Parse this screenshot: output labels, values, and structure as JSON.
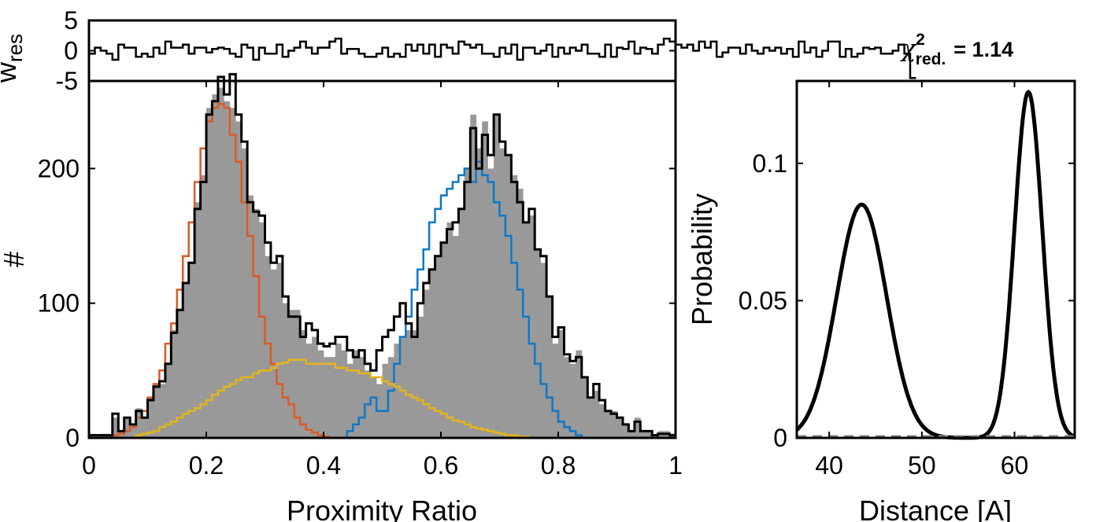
{
  "chart_data": [
    {
      "id": "residuals",
      "type": "line",
      "ylabel": "w",
      "ylabel_sub": "res",
      "xlim": [
        0,
        1
      ],
      "ylim": [
        -5,
        5
      ],
      "yticks": [
        -5,
        0,
        5
      ],
      "yticklabels": [
        "-5",
        "0",
        "5"
      ],
      "step": true,
      "grid": false,
      "x_start": 0,
      "bin_width": 0.01,
      "series": [
        {
          "color": "#000000",
          "values": [
            -0.5,
            0.5,
            0,
            -0.5,
            -1.5,
            1,
            0.5,
            0.5,
            -1,
            -0.5,
            -1,
            0.5,
            -0.5,
            1.5,
            0.5,
            0.5,
            1,
            -0.5,
            0.5,
            0.5,
            -0.3,
            0.3,
            0.5,
            0.3,
            -0.5,
            -1,
            1,
            0.5,
            -1.5,
            0.5,
            -0.5,
            -0.5,
            1,
            -1,
            0,
            0.5,
            1.5,
            0.5,
            -0.5,
            0.5,
            0.5,
            1.5,
            2,
            -0.5,
            0.3,
            0.3,
            -0.5,
            -1,
            -1,
            -0.5,
            0.5,
            -1,
            -0.5,
            -1,
            1,
            0,
            1,
            -0.5,
            1,
            -1,
            1,
            0.5,
            -0.5,
            1.5,
            1,
            0.5,
            1,
            -0.5,
            -0.5,
            -1,
            0.5,
            -0.5,
            1,
            -1.5,
            0.5,
            0.5,
            -0.5,
            0,
            1,
            -1,
            0.5,
            -0.5,
            0.5,
            0,
            1,
            -0.5,
            -0.5,
            -1,
            1,
            -1,
            0.5,
            0.3,
            1.5,
            -0.5,
            0.5,
            0.3,
            -0.5,
            1,
            2,
            1.5,
            1,
            0.5,
            1,
            0,
            1.5,
            0.5,
            1.5,
            -1,
            -0.3,
            0.5,
            0.5,
            -0.5,
            1,
            0,
            -0.5,
            0.5,
            0,
            0.5,
            -0.5,
            0.3,
            -1,
            1.5,
            -0.3,
            0.5,
            -1,
            0,
            1.5,
            1.5,
            -1,
            0.3,
            -1,
            -0.5,
            0.5,
            0.3,
            0.5,
            -0.5,
            -0.5,
            0,
            1,
            -0.5,
            -4.5
          ]
        }
      ]
    },
    {
      "id": "histogram",
      "type": "bar",
      "xlabel": "Proximity Ratio",
      "ylabel": "#",
      "xlim": [
        0,
        1
      ],
      "ylim": [
        0,
        265
      ],
      "xticks": [
        0,
        0.2,
        0.4,
        0.6,
        0.8,
        1
      ],
      "xticklabels": [
        "0",
        "0.2",
        "0.4",
        "0.6",
        "0.8",
        "1"
      ],
      "yticks": [
        0,
        100,
        200
      ],
      "yticklabels": [
        "0",
        "100",
        "200"
      ],
      "grid": false,
      "x_start": 0,
      "bin_width": 0.01,
      "data_color": "#999999",
      "data_values": [
        3,
        2,
        3,
        2,
        15,
        5,
        15,
        10,
        22,
        15,
        30,
        40,
        40,
        55,
        80,
        95,
        115,
        130,
        175,
        195,
        245,
        255,
        260,
        250,
        245,
        235,
        215,
        180,
        170,
        160,
        135,
        125,
        130,
        100,
        95,
        95,
        80,
        70,
        75,
        65,
        60,
        60,
        70,
        65,
        55,
        65,
        60,
        50,
        45,
        40,
        55,
        60,
        70,
        75,
        80,
        80,
        90,
        110,
        125,
        135,
        145,
        160,
        150,
        170,
        200,
        240,
        215,
        235,
        200,
        240,
        215,
        210,
        195,
        185,
        160,
        165,
        140,
        130,
        105,
        70,
        80,
        60,
        55,
        65,
        45,
        30,
        35,
        25,
        20,
        20,
        15,
        10,
        5,
        15,
        5,
        5,
        2,
        5,
        5,
        3
      ],
      "series": [
        {
          "name": "",
          "color": "#000000",
          "kind": "fit",
          "values": [
            2,
            2,
            2,
            2,
            18,
            5,
            15,
            10,
            20,
            15,
            28,
            38,
            42,
            55,
            78,
            95,
            115,
            130,
            170,
            190,
            240,
            250,
            268,
            255,
            270,
            240,
            220,
            175,
            168,
            165,
            145,
            130,
            135,
            105,
            90,
            90,
            75,
            85,
            80,
            70,
            68,
            70,
            75,
            75,
            65,
            60,
            65,
            55,
            50,
            65,
            75,
            80,
            90,
            100,
            85,
            75,
            100,
            115,
            125,
            135,
            145,
            155,
            160,
            170,
            190,
            230,
            200,
            225,
            210,
            240,
            220,
            210,
            190,
            175,
            160,
            170,
            140,
            135,
            105,
            75,
            82,
            62,
            57,
            60,
            45,
            30,
            40,
            28,
            20,
            18,
            15,
            10,
            5,
            12,
            5,
            5,
            2,
            3,
            3,
            2
          ]
        },
        {
          "name": "",
          "color": "#dc5a23",
          "kind": "component",
          "values": [
            0,
            0,
            0,
            0,
            2,
            3,
            5,
            8,
            15,
            20,
            30,
            40,
            50,
            70,
            85,
            110,
            135,
            160,
            190,
            215,
            235,
            245,
            248,
            245,
            225,
            205,
            175,
            150,
            120,
            90,
            70,
            55,
            40,
            30,
            25,
            15,
            10,
            6,
            4,
            2,
            1,
            0,
            0,
            0,
            0,
            0,
            0,
            0,
            0,
            0,
            0,
            0,
            0,
            0,
            0,
            0,
            0,
            0,
            0,
            0,
            0,
            0,
            0,
            0,
            0,
            0,
            0,
            0,
            0,
            0,
            0,
            0,
            0,
            0,
            0,
            0,
            0,
            0,
            0,
            0,
            0,
            0,
            0,
            0,
            0,
            0,
            0,
            0,
            0,
            0,
            0,
            0,
            0,
            0,
            0,
            0,
            0,
            0,
            0,
            0
          ]
        },
        {
          "name": "",
          "color": "#0d78c8",
          "kind": "component",
          "values": [
            0,
            0,
            0,
            0,
            0,
            0,
            0,
            0,
            0,
            0,
            0,
            0,
            0,
            0,
            0,
            0,
            0,
            0,
            0,
            0,
            0,
            0,
            0,
            0,
            0,
            0,
            0,
            0,
            0,
            0,
            0,
            0,
            0,
            0,
            0,
            0,
            0,
            0,
            0,
            0,
            0,
            0,
            0,
            0,
            5,
            10,
            15,
            25,
            30,
            20,
            20,
            35,
            55,
            75,
            90,
            110,
            125,
            140,
            160,
            170,
            180,
            185,
            190,
            195,
            200,
            190,
            205,
            195,
            190,
            175,
            165,
            150,
            130,
            110,
            90,
            70,
            55,
            40,
            30,
            20,
            12,
            8,
            5,
            2,
            0,
            0,
            0,
            0,
            0,
            0,
            0,
            0,
            0,
            0,
            0,
            0,
            0,
            0,
            0,
            0
          ]
        },
        {
          "name": "",
          "color": "#e6b419",
          "kind": "component",
          "values": [
            0,
            0,
            0,
            0,
            0,
            0,
            0,
            0,
            2,
            3,
            4,
            5,
            8,
            10,
            12,
            15,
            18,
            20,
            22,
            25,
            28,
            32,
            35,
            38,
            40,
            43,
            45,
            45,
            48,
            50,
            50,
            52,
            55,
            56,
            58,
            58,
            58,
            55,
            55,
            55,
            55,
            55,
            52,
            52,
            50,
            50,
            48,
            48,
            45,
            45,
            42,
            40,
            38,
            35,
            32,
            30,
            28,
            25,
            22,
            20,
            18,
            15,
            13,
            12,
            10,
            8,
            7,
            6,
            5,
            4,
            3,
            2,
            2,
            1,
            1,
            0,
            0,
            0,
            0,
            0,
            0,
            0,
            0,
            0,
            0,
            0,
            0,
            0,
            0,
            0,
            0,
            0,
            0,
            0,
            0,
            0,
            0,
            0,
            0,
            0
          ]
        }
      ]
    },
    {
      "id": "distance-distribution",
      "type": "line",
      "title": "χ",
      "title_sup": "2",
      "title_sub": "red.",
      "title_value": "= 1.14",
      "xlabel": "Distance [A]",
      "ylabel": "Probability",
      "xlim": [
        36.5,
        66.5
      ],
      "ylim": [
        0,
        0.13
      ],
      "xticks": [
        40,
        50,
        60
      ],
      "xticklabels": [
        "40",
        "50",
        "60"
      ],
      "yticks": [
        0,
        0.05,
        0.1
      ],
      "yticklabels": [
        "0",
        "0.05",
        "0.1"
      ],
      "grid": false,
      "series": [
        {
          "color": "#000000",
          "kind": "gaussian-mixture",
          "components": [
            {
              "mean": 43.5,
              "sd": 2.7,
              "peak": 0.085
            },
            {
              "mean": 61.5,
              "sd": 1.5,
              "peak": 0.126
            }
          ]
        }
      ]
    }
  ]
}
